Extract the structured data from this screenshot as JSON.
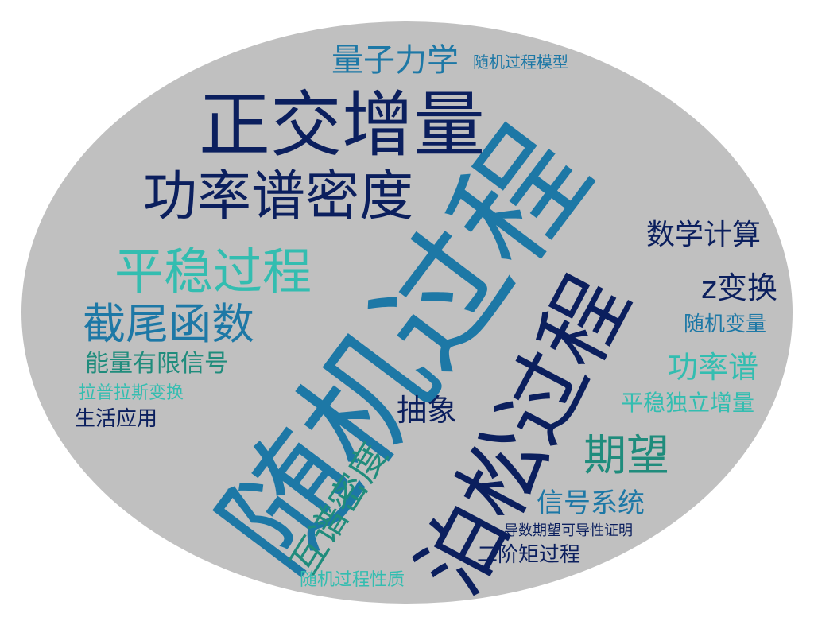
{
  "palette": {
    "background": "#ffffff",
    "oval": "#c0c0c0",
    "navy": "#0b1f5e",
    "blue": "#1d78a6",
    "teal": "#1f8c7c",
    "aqua": "#33bdb0"
  },
  "words": [
    {
      "id": "w0",
      "text": "随机过程",
      "color": "#1d78a6"
    },
    {
      "id": "w1",
      "text": "泊松过程",
      "color": "#0b1f5e"
    },
    {
      "id": "w2",
      "text": "正交增量",
      "color": "#0b1f5e"
    },
    {
      "id": "w3",
      "text": "功率谱密度",
      "color": "#0b1f5e"
    },
    {
      "id": "w4",
      "text": "平稳过程",
      "color": "#33bdb0"
    },
    {
      "id": "w5",
      "text": "截尾函数",
      "color": "#1d78a6"
    },
    {
      "id": "w6",
      "text": "量子力学",
      "color": "#1d78a6"
    },
    {
      "id": "w7",
      "text": "随机过程模型",
      "color": "#1d78a6"
    },
    {
      "id": "w8",
      "text": "数学计算",
      "color": "#0b1f5e"
    },
    {
      "id": "w9",
      "text": "z变换",
      "color": "#0b1f5e"
    },
    {
      "id": "w10",
      "text": "随机变量",
      "color": "#1d78a6"
    },
    {
      "id": "w11",
      "text": "功率谱",
      "color": "#33bdb0"
    },
    {
      "id": "w12",
      "text": "平稳独立增量",
      "color": "#33bdb0"
    },
    {
      "id": "w13",
      "text": "能量有限信号",
      "color": "#1f8c7c"
    },
    {
      "id": "w14",
      "text": "拉普拉斯变换",
      "color": "#33bdb0"
    },
    {
      "id": "w15",
      "text": "生活应用",
      "color": "#0b1f5e"
    },
    {
      "id": "w16",
      "text": "抽象",
      "color": "#0b1f5e"
    },
    {
      "id": "w17",
      "text": "期望",
      "color": "#1f8c7c"
    },
    {
      "id": "w18",
      "text": "互谱密度",
      "color": "#1f8c7c"
    },
    {
      "id": "w19",
      "text": "信号系统",
      "color": "#1d78a6"
    },
    {
      "id": "w20",
      "text": "导数期望可导性证明",
      "color": "#0b1f5e"
    },
    {
      "id": "w21",
      "text": "二阶矩过程",
      "color": "#0b1f5e"
    },
    {
      "id": "w22",
      "text": "随机过程性质",
      "color": "#33bdb0"
    }
  ]
}
